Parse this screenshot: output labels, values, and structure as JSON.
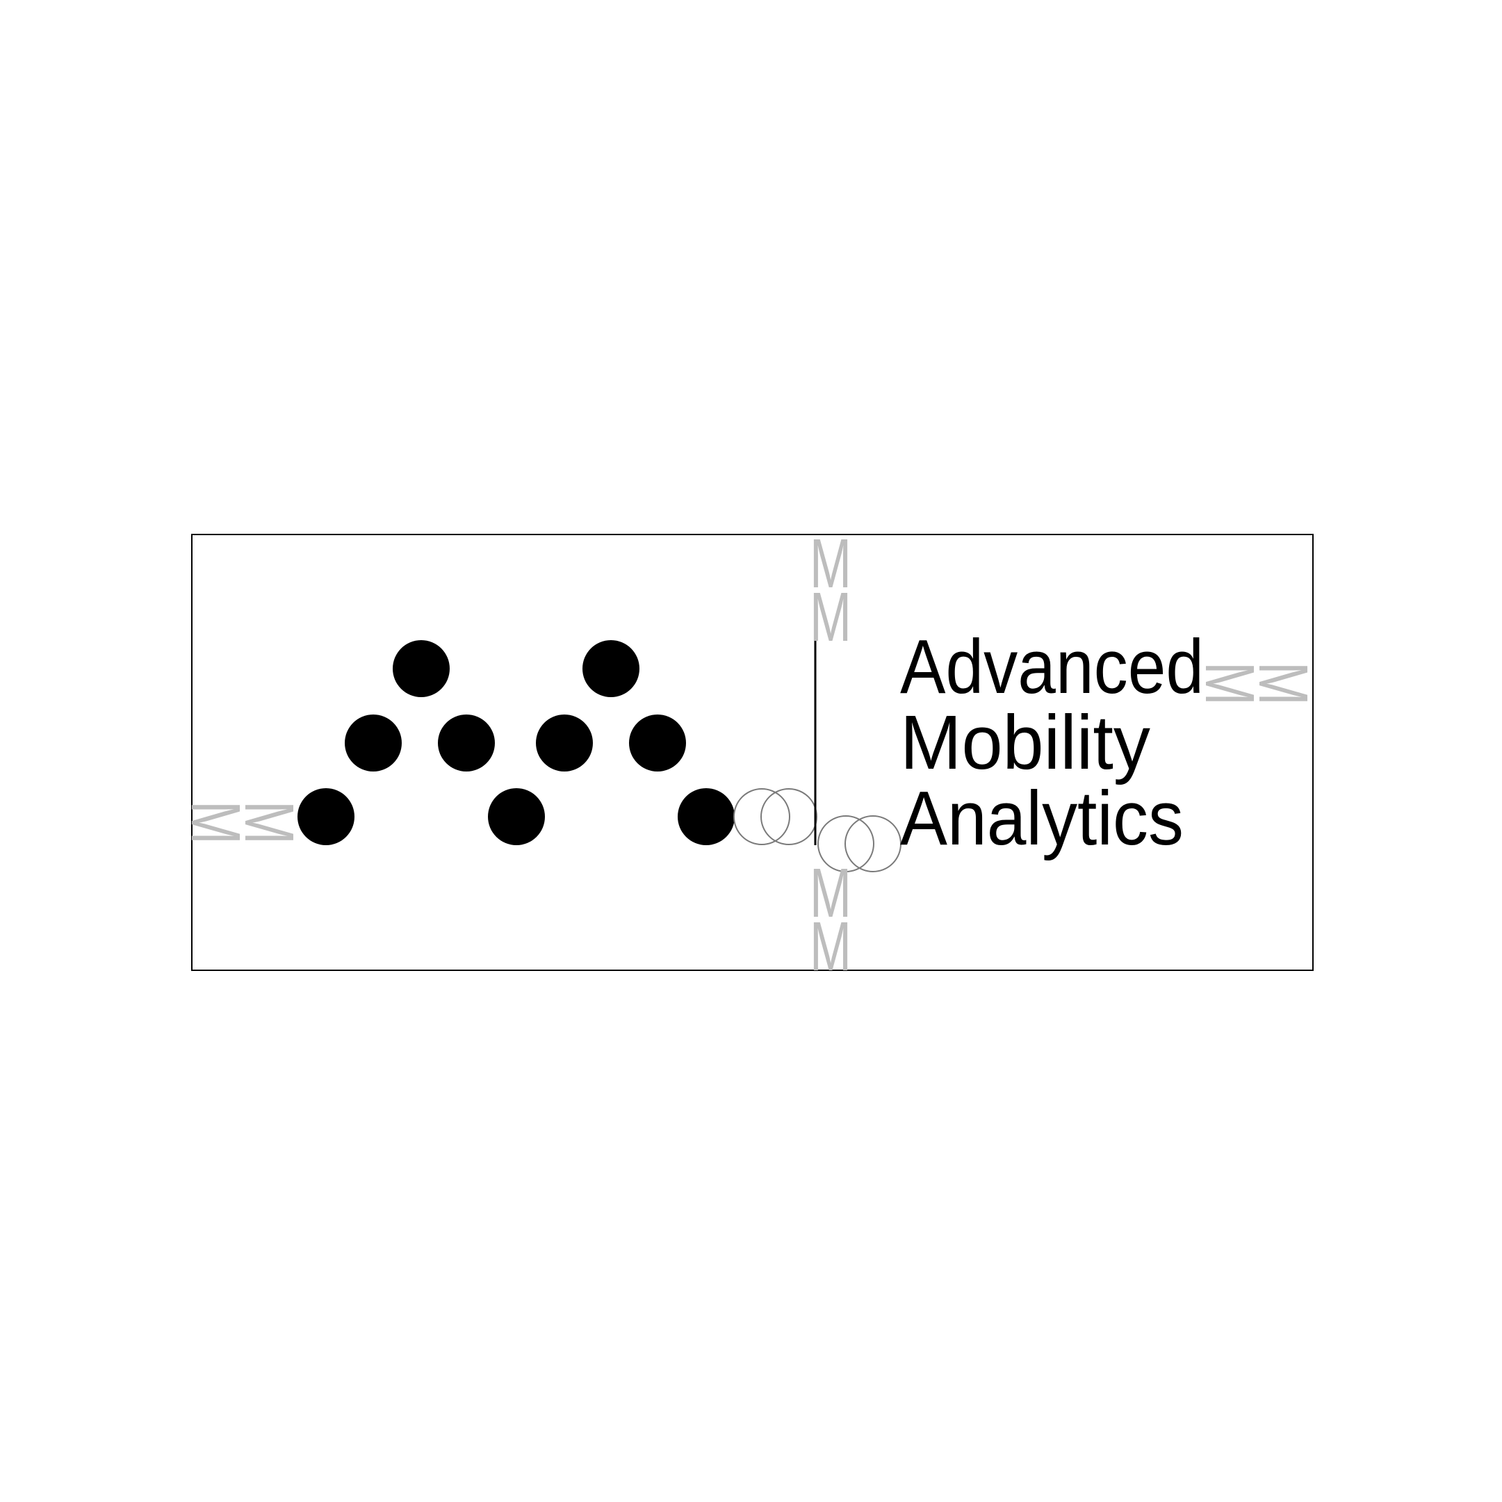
{
  "colors": {
    "background": "#ffffff",
    "ink": "#000000",
    "clearspace_marker": "#bdbdbd",
    "construction_circle": "#7a7a7a"
  },
  "wordmark": {
    "lines": [
      "Advanced",
      "Mobility",
      "Analytics"
    ]
  },
  "clearspace_marker_glyph": "M"
}
